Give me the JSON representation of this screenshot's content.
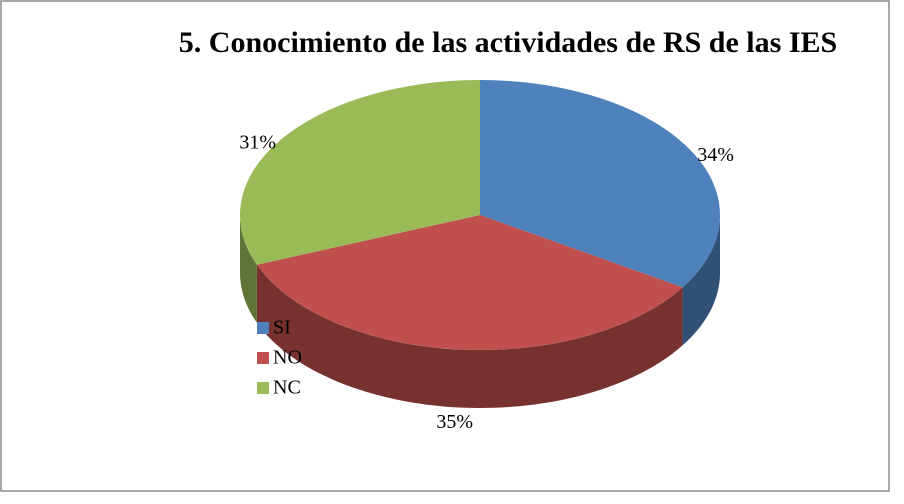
{
  "chart_data": {
    "type": "pie",
    "title": "5. Conocimiento de las actividades de RS de las IES",
    "categories": [
      "SI",
      "NO",
      "NC"
    ],
    "values": [
      34,
      35,
      31
    ],
    "value_labels": [
      "34%",
      "35%",
      "31%"
    ],
    "colors": [
      "#4f81bd",
      "#c0504d",
      "#9bbb59"
    ],
    "legend": "left"
  }
}
